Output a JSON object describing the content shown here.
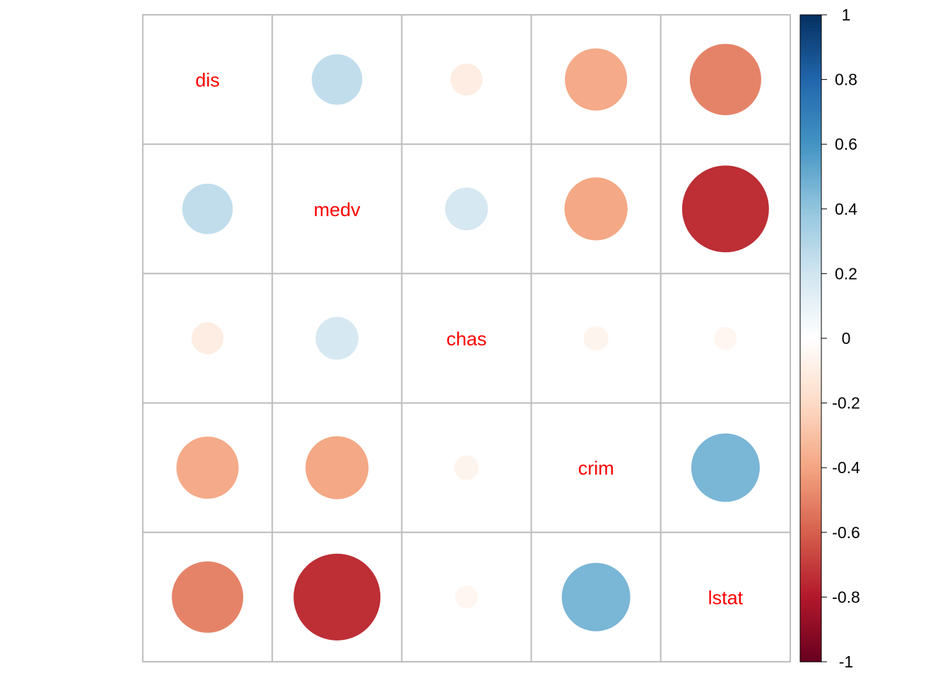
{
  "chart_data": {
    "type": "heatmap",
    "style": "correlation-circles",
    "variables": [
      "dis",
      "medv",
      "chas",
      "crim",
      "lstat"
    ],
    "matrix": [
      [
        1.0,
        0.25,
        -0.1,
        -0.38,
        -0.5
      ],
      [
        0.25,
        1.0,
        0.18,
        -0.39,
        -0.74
      ],
      [
        -0.1,
        0.18,
        1.0,
        -0.06,
        -0.05
      ],
      [
        -0.38,
        -0.39,
        -0.06,
        1.0,
        0.46
      ],
      [
        -0.5,
        -0.74,
        -0.05,
        0.46,
        1.0
      ]
    ],
    "colorbar": {
      "range": [
        -1,
        1
      ],
      "ticks": [
        1,
        0.8,
        0.6,
        0.4,
        0.2,
        0,
        -0.2,
        -0.4,
        -0.6,
        -0.8,
        -1
      ],
      "tick_labels": [
        "1",
        "0.8",
        "0.6",
        "0.4",
        "0.2",
        "0",
        "-0.2",
        "-0.4",
        "-0.6",
        "-0.8",
        "-1"
      ],
      "palette": [
        "#67001F",
        "#B2182B",
        "#D6604D",
        "#F4A582",
        "#FDDBC7",
        "#FFFFFF",
        "#D1E5F0",
        "#92C5DE",
        "#4393C3",
        "#2166AC",
        "#053061"
      ]
    },
    "label_color": "#FF0000",
    "grid_color": "#BEBEBE"
  }
}
